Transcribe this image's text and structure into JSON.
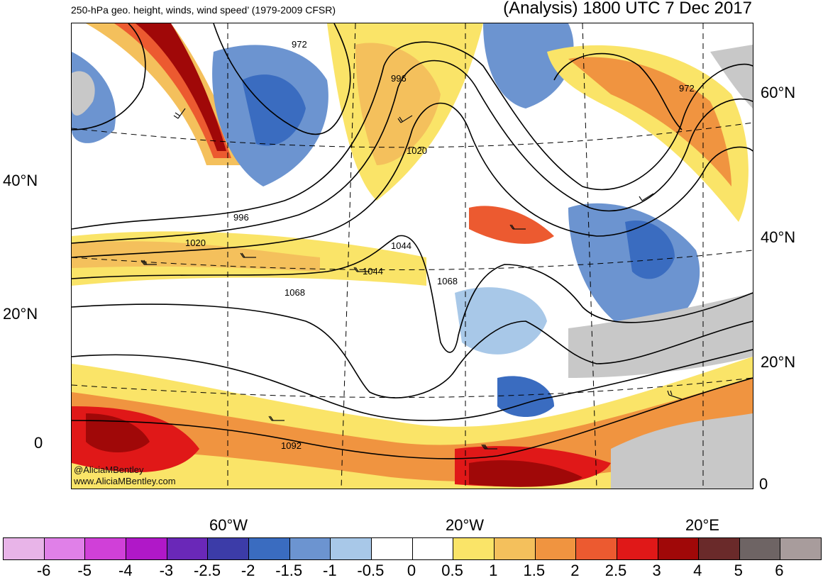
{
  "header": {
    "title_left": "250-hPa geo. height, winds, wind speed’ (1979-2009 CFSR)",
    "title_right": "(Analysis) 1800 UTC 7 Dec 2017"
  },
  "map": {
    "lat_labels_left": [
      "40°N",
      "20°N",
      "0"
    ],
    "lat_labels_right": [
      "60°N",
      "40°N",
      "20°N",
      "0"
    ],
    "lon_labels": [
      "60°W",
      "20°W",
      "20°E"
    ],
    "contour_labels": [
      "972",
      "996",
      "1020",
      "996",
      "1020",
      "1044",
      "1044",
      "1068",
      "1068",
      "1092",
      "972"
    ],
    "credit": [
      "@AliciaMBentley",
      "www.AliciaMBentley.com"
    ]
  },
  "colorbar": {
    "colors": [
      "#e8b4e8",
      "#e080e8",
      "#d040d8",
      "#b018c8",
      "#6a28b8",
      "#3c3ca8",
      "#3a6cc0",
      "#6c94d0",
      "#a8c8e8",
      "#ffffff",
      "#ffffff",
      "#fae468",
      "#f4c05c",
      "#f09440",
      "#ec5a30",
      "#e01818",
      "#a00808",
      "#6a2a2a",
      "#6e6464",
      "#a89c9c"
    ],
    "ticks": [
      "-6",
      "-5",
      "-4",
      "-3",
      "-2.5",
      "-2",
      "-1.5",
      "-1",
      "-0.5",
      "0",
      "0.5",
      "1",
      "1.5",
      "2",
      "2.5",
      "3",
      "4",
      "5",
      "6"
    ]
  }
}
